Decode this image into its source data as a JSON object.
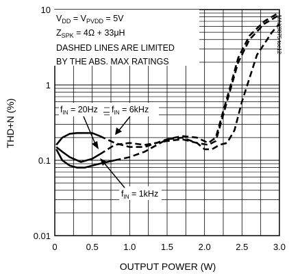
{
  "chart_data": {
    "type": "line",
    "xlabel": "OUTPUT POWER (W)",
    "ylabel": "THD+N (%)",
    "xlim": [
      0,
      3.0
    ],
    "ylim": [
      0.01,
      10
    ],
    "y_scale": "log",
    "grid": true,
    "x_ticks": [
      "0",
      "0.5",
      "1.0",
      "1.5",
      "2.0",
      "2.5",
      "3.0"
    ],
    "y_ticks": [
      "0.01",
      "0.1",
      "1",
      "10"
    ],
    "annotations": {
      "vdd": "V_DD = V_PVDD = 5V",
      "zspk": "Z_SPK = 4Ω + 33μH",
      "dashed_1": "DASHED LINES ARE LIMITED",
      "dashed_2": "BY THE ABS. MAX RATINGS",
      "label_20hz": "f_IN = 20Hz",
      "label_6khz": "f_IN = 6kHz",
      "label_1khz": "f_IN = 1kHz",
      "code": "MAX9875 toc12"
    },
    "series": [
      {
        "name": "f_IN = 20Hz",
        "x": [
          0.02,
          0.1,
          0.2,
          0.35,
          0.5,
          0.6,
          0.8,
          1.0,
          1.2,
          1.5,
          1.7,
          1.9,
          2.05,
          2.15,
          2.25,
          2.35,
          2.45,
          2.6,
          2.8,
          3.0
        ],
        "y": [
          0.15,
          0.13,
          0.11,
          0.095,
          0.105,
          0.12,
          0.16,
          0.17,
          0.16,
          0.18,
          0.19,
          0.17,
          0.16,
          0.18,
          0.4,
          0.9,
          2.0,
          4.0,
          6.5,
          8.5
        ],
        "solid_to": 0.6
      },
      {
        "name": "f_IN = 6kHz",
        "x": [
          0.02,
          0.1,
          0.2,
          0.3,
          0.5,
          0.6,
          0.8,
          1.0,
          1.2,
          1.5,
          1.7,
          1.9,
          2.05,
          2.15,
          2.25,
          2.35,
          2.45,
          2.6,
          2.8,
          3.0
        ],
        "y": [
          0.16,
          0.2,
          0.225,
          0.23,
          0.23,
          0.21,
          0.17,
          0.15,
          0.15,
          0.19,
          0.21,
          0.2,
          0.17,
          0.2,
          0.45,
          1.0,
          2.3,
          4.5,
          7.0,
          9.2
        ],
        "solid_to": 0.6
      },
      {
        "name": "f_IN = 1kHz",
        "x": [
          0.02,
          0.1,
          0.2,
          0.3,
          0.4,
          0.5,
          0.6,
          0.8,
          1.0,
          1.2,
          1.5,
          1.7,
          1.9,
          2.0,
          2.1,
          2.2,
          2.3,
          2.4,
          2.5,
          2.7,
          2.9,
          3.0
        ],
        "y": [
          0.14,
          0.1,
          0.085,
          0.08,
          0.08,
          0.085,
          0.09,
          0.1,
          0.11,
          0.13,
          0.19,
          0.2,
          0.17,
          0.14,
          0.14,
          0.16,
          0.17,
          0.25,
          0.6,
          2.5,
          5.0,
          6.5
        ],
        "solid_to": 0.8
      }
    ]
  }
}
